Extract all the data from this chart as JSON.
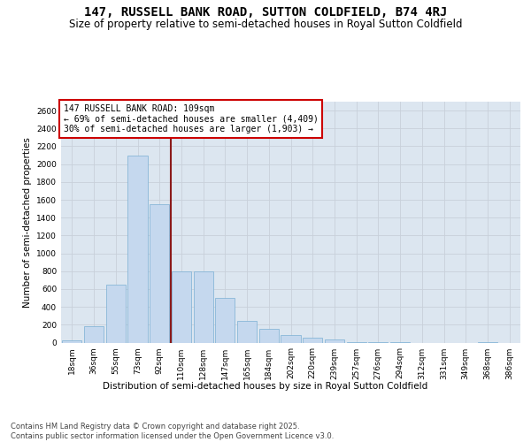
{
  "title": "147, RUSSELL BANK ROAD, SUTTON COLDFIELD, B74 4RJ",
  "subtitle": "Size of property relative to semi-detached houses in Royal Sutton Coldfield",
  "xlabel": "Distribution of semi-detached houses by size in Royal Sutton Coldfield",
  "ylabel": "Number of semi-detached properties",
  "categories": [
    "18sqm",
    "36sqm",
    "55sqm",
    "73sqm",
    "92sqm",
    "110sqm",
    "128sqm",
    "147sqm",
    "165sqm",
    "184sqm",
    "202sqm",
    "220sqm",
    "239sqm",
    "257sqm",
    "276sqm",
    "294sqm",
    "312sqm",
    "331sqm",
    "349sqm",
    "368sqm",
    "386sqm"
  ],
  "values": [
    20,
    180,
    650,
    2100,
    1550,
    800,
    800,
    500,
    240,
    150,
    80,
    50,
    30,
    5,
    5,
    5,
    0,
    0,
    0,
    5,
    0
  ],
  "bar_color": "#c5d8ee",
  "bar_edge_color": "#7aafd4",
  "vline_x_index": 5,
  "vline_color": "#8b1a1a",
  "annotation_title": "147 RUSSELL BANK ROAD: 109sqm",
  "annotation_line1": "← 69% of semi-detached houses are smaller (4,409)",
  "annotation_line2": "30% of semi-detached houses are larger (1,903) →",
  "annotation_box_color": "#ffffff",
  "annotation_box_edge_color": "#cc0000",
  "ylim": [
    0,
    2700
  ],
  "yticks": [
    0,
    200,
    400,
    600,
    800,
    1000,
    1200,
    1400,
    1600,
    1800,
    2000,
    2200,
    2400,
    2600
  ],
  "grid_color": "#c8d0da",
  "bg_color": "#dce6f0",
  "footer": "Contains HM Land Registry data © Crown copyright and database right 2025.\nContains public sector information licensed under the Open Government Licence v3.0.",
  "title_fontsize": 10,
  "subtitle_fontsize": 8.5,
  "axis_label_fontsize": 7.5,
  "tick_fontsize": 6.5,
  "annotation_fontsize": 7,
  "footer_fontsize": 6
}
